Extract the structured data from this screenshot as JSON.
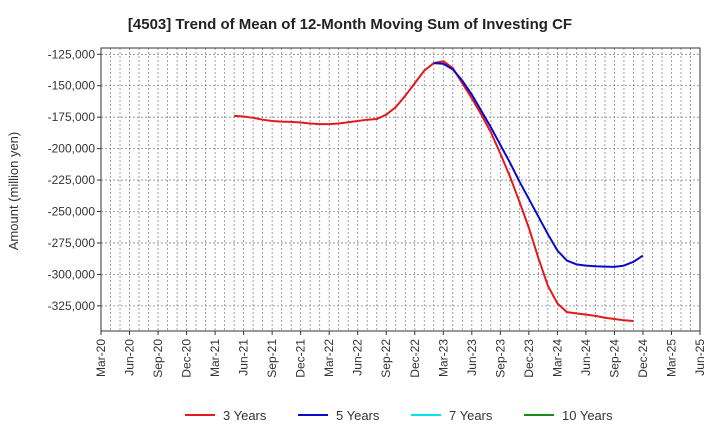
{
  "colors": {
    "series_3y": "#e31a1c",
    "series_5y": "#0a0acc",
    "series_7y": "#00e5ee",
    "series_10y": "#1a8a1a",
    "grid": "#888888",
    "axis": "#333333"
  },
  "chart_data": {
    "type": "line",
    "title": "[4503]  Trend of Mean of 12-Month Moving Sum of Investing CF",
    "xlabel": "",
    "ylabel": "Amount (million yen)",
    "ylim": [
      -345000,
      -120000
    ],
    "yticks": [
      -125000,
      -150000,
      -175000,
      -200000,
      -225000,
      -250000,
      -275000,
      -300000,
      -325000
    ],
    "ytick_labels": [
      "-125,000",
      "-150,000",
      "-175,000",
      "-200,000",
      "-225,000",
      "-250,000",
      "-275,000",
      "-300,000",
      "-325,000"
    ],
    "xtick_labels": [
      "Mar-20",
      "Jun-20",
      "Sep-20",
      "Dec-20",
      "Mar-21",
      "Jun-21",
      "Sep-21",
      "Dec-21",
      "Mar-22",
      "Jun-22",
      "Sep-22",
      "Dec-22",
      "Mar-23",
      "Jun-23",
      "Sep-23",
      "Dec-23",
      "Mar-24",
      "Jun-24",
      "Sep-24",
      "Dec-24",
      "Mar-25",
      "Jun-25"
    ],
    "grid": true,
    "legend_position": "bottom",
    "series": [
      {
        "name": "3 Years",
        "color_key": "series_3y",
        "points": [
          [
            14,
            -174000
          ],
          [
            15,
            -174500
          ],
          [
            16,
            -175500
          ],
          [
            17,
            -177000
          ],
          [
            18,
            -178000
          ],
          [
            19,
            -178500
          ],
          [
            20,
            -178700
          ],
          [
            21,
            -179200
          ],
          [
            22,
            -180000
          ],
          [
            23,
            -180500
          ],
          [
            24,
            -180500
          ],
          [
            25,
            -180000
          ],
          [
            26,
            -179000
          ],
          [
            27,
            -178000
          ],
          [
            28,
            -177000
          ],
          [
            29,
            -176500
          ],
          [
            30,
            -173000
          ],
          [
            31,
            -167000
          ],
          [
            32,
            -158000
          ],
          [
            33,
            -148000
          ],
          [
            34,
            -138000
          ],
          [
            35,
            -132000
          ],
          [
            36,
            -130500
          ],
          [
            37,
            -136000
          ],
          [
            38,
            -148000
          ],
          [
            39,
            -160000
          ],
          [
            40,
            -173000
          ],
          [
            41,
            -187000
          ],
          [
            42,
            -204000
          ],
          [
            43,
            -222000
          ],
          [
            44,
            -242000
          ],
          [
            45,
            -263000
          ],
          [
            46,
            -287000
          ],
          [
            47,
            -309000
          ],
          [
            48,
            -323000
          ],
          [
            49,
            -330000
          ],
          [
            50,
            -331000
          ],
          [
            51,
            -332000
          ],
          [
            52,
            -333000
          ],
          [
            53,
            -334500
          ],
          [
            54,
            -335500
          ],
          [
            55,
            -336500
          ],
          [
            56,
            -337000
          ]
        ]
      },
      {
        "name": "5 Years",
        "color_key": "series_5y",
        "points": [
          [
            35,
            -132000
          ],
          [
            36,
            -132500
          ],
          [
            37,
            -137000
          ],
          [
            38,
            -146000
          ],
          [
            39,
            -157000
          ],
          [
            40,
            -170000
          ],
          [
            41,
            -183000
          ],
          [
            42,
            -197000
          ],
          [
            43,
            -211000
          ],
          [
            44,
            -226000
          ],
          [
            45,
            -240000
          ],
          [
            46,
            -254000
          ],
          [
            47,
            -268000
          ],
          [
            48,
            -281000
          ],
          [
            49,
            -289000
          ],
          [
            50,
            -292000
          ],
          [
            51,
            -293000
          ],
          [
            52,
            -293500
          ],
          [
            53,
            -293800
          ],
          [
            54,
            -294000
          ],
          [
            55,
            -293000
          ],
          [
            56,
            -290000
          ],
          [
            57,
            -285000
          ]
        ]
      },
      {
        "name": "7 Years",
        "color_key": "series_7y",
        "points": []
      },
      {
        "name": "10 Years",
        "color_key": "series_10y",
        "points": []
      }
    ]
  }
}
